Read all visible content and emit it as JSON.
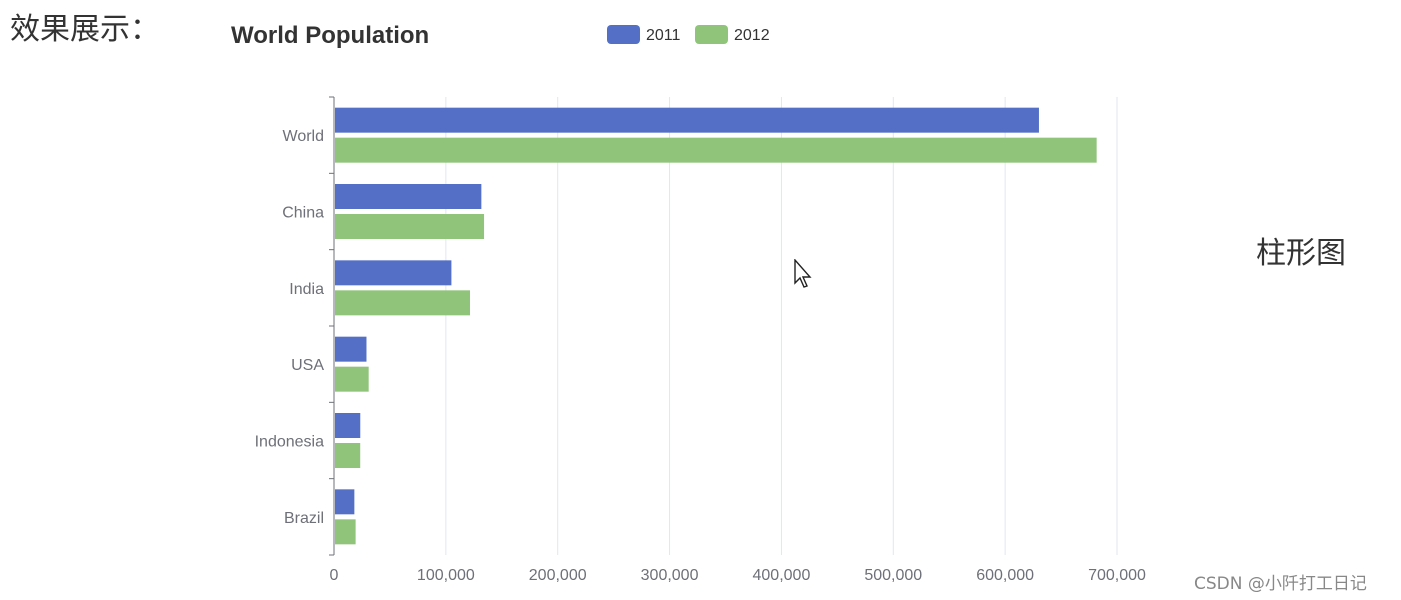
{
  "page": {
    "heading": "效果展示：",
    "side_label": "柱形图",
    "watermark": "CSDN @小阡打工日记"
  },
  "colors": {
    "series_2011": "#5470c6",
    "series_2012": "#91c47b",
    "axis": "#6e7079",
    "grid": "#e0e6f1"
  },
  "chart_data": {
    "type": "bar",
    "orientation": "horizontal",
    "title": "World Population",
    "categories": [
      "Brazil",
      "Indonesia",
      "USA",
      "India",
      "China",
      "World"
    ],
    "series": [
      {
        "name": "2011",
        "values": [
          18203,
          23489,
          29034,
          104970,
          131744,
          630230
        ]
      },
      {
        "name": "2012",
        "values": [
          19325,
          23438,
          31000,
          121594,
          134141,
          681807
        ]
      }
    ],
    "xlim": [
      0,
      700000
    ],
    "xticks": [
      "0",
      "100,000",
      "200,000",
      "300,000",
      "400,000",
      "500,000",
      "600,000",
      "700,000"
    ],
    "grid": "vertical",
    "legend": "top-center"
  }
}
